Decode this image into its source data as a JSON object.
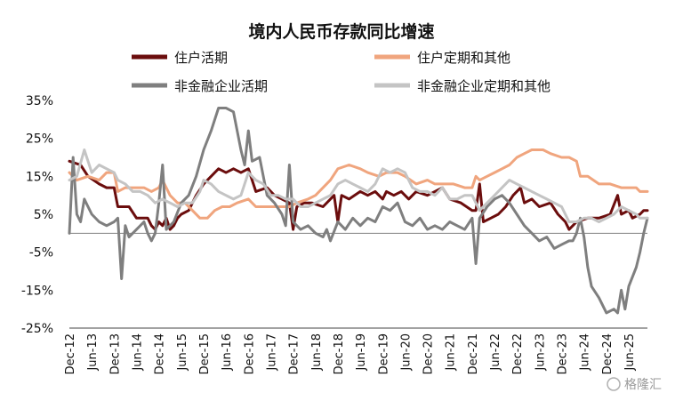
{
  "chart_data": {
    "type": "line",
    "title": "境内人民币存款同比增速",
    "ylabel": "",
    "xlabel": "",
    "ylim": [
      -25,
      35
    ],
    "yticks": [
      "35%",
      "25%",
      "15%",
      "5%",
      "-5%",
      "-15%",
      "-25%"
    ],
    "ytick_values": [
      35,
      25,
      15,
      5,
      -5,
      -15,
      -25
    ],
    "x_start": "Dec-12",
    "x_period_months": 1,
    "xticks": [
      "Dec-12",
      "Jun-13",
      "Dec-13",
      "Jun-14",
      "Dec-14",
      "Jun-15",
      "Dec-15",
      "Jun-16",
      "Dec-16",
      "Jun-17",
      "Dec-17",
      "Jun-18",
      "Dec-18",
      "Jun-19",
      "Dec-19",
      "Jun-20",
      "Dec-20",
      "Jun-21",
      "Dec-21",
      "Jun-22",
      "Dec-22",
      "Jun-23",
      "Dec-23",
      "Jun-24",
      "Dec-24",
      "Jun-25"
    ],
    "grid": false,
    "legend_position": "top",
    "watermark": "格隆汇",
    "series": [
      {
        "name": "住户活期",
        "color": "#6b0d0d",
        "keypoints": [
          [
            0,
            19
          ],
          [
            3,
            18
          ],
          [
            5,
            15
          ],
          [
            8,
            13
          ],
          [
            10,
            12
          ],
          [
            12,
            12
          ],
          [
            13,
            7
          ],
          [
            16,
            7
          ],
          [
            18,
            4
          ],
          [
            21,
            4
          ],
          [
            22,
            2
          ],
          [
            23,
            1
          ],
          [
            24,
            3
          ],
          [
            25,
            2
          ],
          [
            26,
            4
          ],
          [
            27,
            1
          ],
          [
            28,
            2
          ],
          [
            29,
            4
          ],
          [
            30,
            5
          ],
          [
            32,
            6
          ],
          [
            34,
            10
          ],
          [
            36,
            13
          ],
          [
            38,
            15
          ],
          [
            40,
            17
          ],
          [
            42,
            16
          ],
          [
            44,
            17
          ],
          [
            46,
            16
          ],
          [
            48,
            17
          ],
          [
            50,
            11
          ],
          [
            53,
            12
          ],
          [
            55,
            10
          ],
          [
            57,
            9
          ],
          [
            59,
            8
          ],
          [
            60,
            1
          ],
          [
            61,
            7
          ],
          [
            63,
            8
          ],
          [
            65,
            8
          ],
          [
            68,
            7
          ],
          [
            71,
            10
          ],
          [
            72,
            3
          ],
          [
            73,
            10
          ],
          [
            75,
            9
          ],
          [
            78,
            11
          ],
          [
            80,
            10
          ],
          [
            82,
            11
          ],
          [
            84,
            9
          ],
          [
            85,
            11
          ],
          [
            87,
            10
          ],
          [
            89,
            11
          ],
          [
            91,
            9
          ],
          [
            93,
            11
          ],
          [
            96,
            10
          ],
          [
            98,
            11
          ],
          [
            100,
            12
          ],
          [
            102,
            9
          ],
          [
            105,
            8
          ],
          [
            108,
            6
          ],
          [
            109,
            6
          ],
          [
            110,
            13
          ],
          [
            111,
            3
          ],
          [
            113,
            4
          ],
          [
            115,
            5
          ],
          [
            117,
            7
          ],
          [
            119,
            10
          ],
          [
            121,
            12
          ],
          [
            122,
            8
          ],
          [
            124,
            9
          ],
          [
            126,
            7
          ],
          [
            129,
            8
          ],
          [
            131,
            5
          ],
          [
            133,
            3
          ],
          [
            134,
            1
          ],
          [
            136,
            3
          ],
          [
            139,
            4
          ],
          [
            142,
            4
          ],
          [
            145,
            5
          ],
          [
            147,
            10
          ],
          [
            148,
            5
          ],
          [
            150,
            6
          ],
          [
            151,
            4
          ],
          [
            153,
            5
          ],
          [
            154,
            6
          ],
          [
            155,
            6
          ]
        ]
      },
      {
        "name": "住户定期和其他",
        "color": "#f0a57e",
        "keypoints": [
          [
            0,
            16
          ],
          [
            2,
            14
          ],
          [
            5,
            15
          ],
          [
            8,
            14
          ],
          [
            10,
            16
          ],
          [
            12,
            16
          ],
          [
            13,
            11
          ],
          [
            15,
            12
          ],
          [
            17,
            12
          ],
          [
            20,
            12
          ],
          [
            22,
            11
          ],
          [
            24,
            12
          ],
          [
            25,
            14
          ],
          [
            27,
            10
          ],
          [
            29,
            8
          ],
          [
            31,
            8
          ],
          [
            33,
            6
          ],
          [
            35,
            4
          ],
          [
            37,
            4
          ],
          [
            39,
            6
          ],
          [
            41,
            7
          ],
          [
            43,
            7
          ],
          [
            45,
            8
          ],
          [
            48,
            9
          ],
          [
            50,
            7
          ],
          [
            53,
            7
          ],
          [
            56,
            7
          ],
          [
            59,
            7
          ],
          [
            61,
            8
          ],
          [
            64,
            9
          ],
          [
            66,
            10
          ],
          [
            68,
            12
          ],
          [
            70,
            14
          ],
          [
            72,
            17
          ],
          [
            75,
            18
          ],
          [
            78,
            17
          ],
          [
            80,
            16
          ],
          [
            83,
            15
          ],
          [
            85,
            16
          ],
          [
            88,
            16
          ],
          [
            90,
            15
          ],
          [
            93,
            13
          ],
          [
            96,
            14
          ],
          [
            98,
            13
          ],
          [
            100,
            13
          ],
          [
            103,
            13
          ],
          [
            106,
            12
          ],
          [
            108,
            12
          ],
          [
            109,
            15
          ],
          [
            110,
            14
          ],
          [
            112,
            15
          ],
          [
            114,
            16
          ],
          [
            116,
            17
          ],
          [
            118,
            18
          ],
          [
            120,
            20
          ],
          [
            122,
            21
          ],
          [
            124,
            22
          ],
          [
            127,
            22
          ],
          [
            129,
            21
          ],
          [
            132,
            20
          ],
          [
            134,
            20
          ],
          [
            136,
            19
          ],
          [
            137,
            15
          ],
          [
            139,
            15
          ],
          [
            142,
            13
          ],
          [
            145,
            13
          ],
          [
            148,
            12
          ],
          [
            150,
            12
          ],
          [
            152,
            12
          ],
          [
            153,
            11
          ],
          [
            155,
            11
          ]
        ]
      },
      {
        "name": "非金融企业活期",
        "color": "#7f7f7f",
        "keypoints": [
          [
            0,
            0
          ],
          [
            1,
            20
          ],
          [
            2,
            5
          ],
          [
            3,
            3
          ],
          [
            4,
            9
          ],
          [
            5,
            7
          ],
          [
            6,
            5
          ],
          [
            8,
            3
          ],
          [
            10,
            2
          ],
          [
            12,
            3
          ],
          [
            13,
            4
          ],
          [
            14,
            -12
          ],
          [
            15,
            2
          ],
          [
            16,
            -1
          ],
          [
            18,
            1
          ],
          [
            20,
            3
          ],
          [
            21,
            0
          ],
          [
            22,
            -2
          ],
          [
            23,
            0
          ],
          [
            24,
            8
          ],
          [
            25,
            18
          ],
          [
            26,
            1
          ],
          [
            27,
            2
          ],
          [
            28,
            3
          ],
          [
            30,
            8
          ],
          [
            32,
            10
          ],
          [
            34,
            15
          ],
          [
            36,
            22
          ],
          [
            38,
            27
          ],
          [
            40,
            33
          ],
          [
            42,
            33
          ],
          [
            44,
            32
          ],
          [
            46,
            22
          ],
          [
            47,
            18
          ],
          [
            48,
            27
          ],
          [
            49,
            19
          ],
          [
            51,
            20
          ],
          [
            53,
            10
          ],
          [
            55,
            8
          ],
          [
            57,
            5
          ],
          [
            58,
            2
          ],
          [
            59,
            18
          ],
          [
            60,
            3
          ],
          [
            62,
            1
          ],
          [
            64,
            2
          ],
          [
            66,
            0
          ],
          [
            68,
            -1
          ],
          [
            69,
            1
          ],
          [
            70,
            -2
          ],
          [
            72,
            3
          ],
          [
            74,
            1
          ],
          [
            76,
            4
          ],
          [
            78,
            2
          ],
          [
            80,
            4
          ],
          [
            82,
            3
          ],
          [
            84,
            7
          ],
          [
            86,
            6
          ],
          [
            88,
            8
          ],
          [
            90,
            3
          ],
          [
            92,
            2
          ],
          [
            94,
            4
          ],
          [
            96,
            1
          ],
          [
            98,
            2
          ],
          [
            100,
            1
          ],
          [
            102,
            3
          ],
          [
            104,
            2
          ],
          [
            106,
            1
          ],
          [
            108,
            4
          ],
          [
            109,
            -8
          ],
          [
            110,
            4
          ],
          [
            112,
            7
          ],
          [
            114,
            9
          ],
          [
            116,
            10
          ],
          [
            118,
            8
          ],
          [
            120,
            5
          ],
          [
            122,
            2
          ],
          [
            124,
            0
          ],
          [
            126,
            -2
          ],
          [
            128,
            -1
          ],
          [
            130,
            -4
          ],
          [
            132,
            -3
          ],
          [
            134,
            -2
          ],
          [
            135,
            -2
          ],
          [
            136,
            0
          ],
          [
            137,
            4
          ],
          [
            138,
            -1
          ],
          [
            139,
            -9
          ],
          [
            140,
            -14
          ],
          [
            142,
            -17
          ],
          [
            144,
            -21
          ],
          [
            146,
            -20
          ],
          [
            147,
            -21
          ],
          [
            148,
            -15
          ],
          [
            149,
            -20
          ],
          [
            150,
            -14
          ],
          [
            152,
            -9
          ],
          [
            153,
            -5
          ],
          [
            154,
            0
          ],
          [
            155,
            4
          ]
        ]
      },
      {
        "name": "非金融企业定期和其他",
        "color": "#c4c4c4",
        "keypoints": [
          [
            0,
            14
          ],
          [
            2,
            15
          ],
          [
            4,
            22
          ],
          [
            6,
            16
          ],
          [
            8,
            18
          ],
          [
            10,
            17
          ],
          [
            12,
            16
          ],
          [
            13,
            14
          ],
          [
            15,
            13
          ],
          [
            17,
            11
          ],
          [
            19,
            11
          ],
          [
            21,
            10
          ],
          [
            23,
            8
          ],
          [
            25,
            9
          ],
          [
            27,
            8
          ],
          [
            29,
            7
          ],
          [
            31,
            8
          ],
          [
            33,
            8
          ],
          [
            35,
            11
          ],
          [
            36,
            14
          ],
          [
            38,
            13
          ],
          [
            40,
            11
          ],
          [
            42,
            10
          ],
          [
            44,
            9
          ],
          [
            46,
            10
          ],
          [
            48,
            16
          ],
          [
            50,
            14
          ],
          [
            52,
            13
          ],
          [
            54,
            10
          ],
          [
            56,
            10
          ],
          [
            58,
            9
          ],
          [
            60,
            9
          ],
          [
            62,
            7
          ],
          [
            64,
            7
          ],
          [
            66,
            8
          ],
          [
            68,
            9
          ],
          [
            70,
            10
          ],
          [
            72,
            13
          ],
          [
            74,
            14
          ],
          [
            76,
            13
          ],
          [
            78,
            12
          ],
          [
            80,
            11
          ],
          [
            82,
            13
          ],
          [
            84,
            17
          ],
          [
            86,
            16
          ],
          [
            88,
            17
          ],
          [
            90,
            16
          ],
          [
            92,
            12
          ],
          [
            94,
            11
          ],
          [
            96,
            11
          ],
          [
            98,
            10
          ],
          [
            100,
            12
          ],
          [
            102,
            9
          ],
          [
            104,
            9
          ],
          [
            106,
            10
          ],
          [
            108,
            10
          ],
          [
            110,
            6
          ],
          [
            112,
            8
          ],
          [
            114,
            10
          ],
          [
            116,
            12
          ],
          [
            118,
            14
          ],
          [
            120,
            13
          ],
          [
            122,
            12
          ],
          [
            124,
            11
          ],
          [
            126,
            10
          ],
          [
            128,
            9
          ],
          [
            130,
            8
          ],
          [
            132,
            7
          ],
          [
            134,
            3
          ],
          [
            136,
            3
          ],
          [
            138,
            4
          ],
          [
            140,
            4
          ],
          [
            142,
            3
          ],
          [
            144,
            4
          ],
          [
            146,
            5
          ],
          [
            148,
            7
          ],
          [
            150,
            6
          ],
          [
            152,
            5
          ],
          [
            153,
            4
          ],
          [
            155,
            4
          ]
        ]
      }
    ]
  }
}
